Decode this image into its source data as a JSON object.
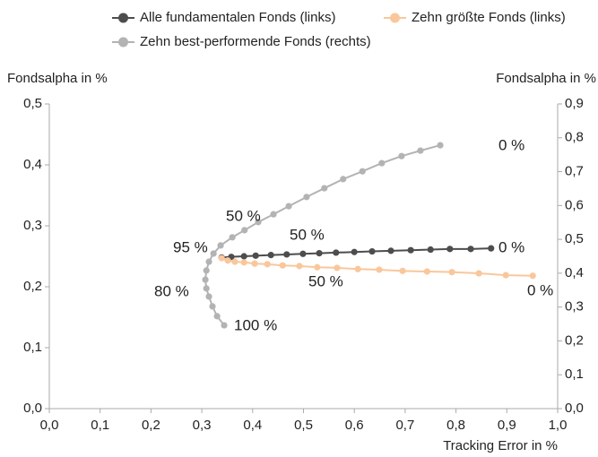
{
  "chart_data": {
    "type": "line",
    "xlabel": "Tracking Error in %",
    "ylabel": "Fondsalpha in %",
    "y2label": "Fondsalpha in %",
    "xlim": [
      0,
      1
    ],
    "ylim": [
      0,
      0.5
    ],
    "y2lim": [
      0,
      0.9
    ],
    "xticks": [
      {
        "value": 0,
        "label": "0,0"
      },
      {
        "value": 0.1,
        "label": "0,1"
      },
      {
        "value": 0.2,
        "label": "0,2"
      },
      {
        "value": 0.3,
        "label": "0,3"
      },
      {
        "value": 0.4,
        "label": "0,4"
      },
      {
        "value": 0.5,
        "label": "0,5"
      },
      {
        "value": 0.6,
        "label": "0,6"
      },
      {
        "value": 0.7,
        "label": "0,7"
      },
      {
        "value": 0.8,
        "label": "0,8"
      },
      {
        "value": 0.9,
        "label": "0,9"
      },
      {
        "value": 1,
        "label": "1,0"
      }
    ],
    "yticks": [
      {
        "value": 0,
        "label": "0,0"
      },
      {
        "value": 0.1,
        "label": "0,1"
      },
      {
        "value": 0.2,
        "label": "0,2"
      },
      {
        "value": 0.3,
        "label": "0,3"
      },
      {
        "value": 0.4,
        "label": "0,4"
      },
      {
        "value": 0.5,
        "label": "0,5"
      }
    ],
    "y2ticks": [
      {
        "value": 0,
        "label": "0,0"
      },
      {
        "value": 0.1,
        "label": "0,1"
      },
      {
        "value": 0.2,
        "label": "0,2"
      },
      {
        "value": 0.3,
        "label": "0,3"
      },
      {
        "value": 0.4,
        "label": "0,4"
      },
      {
        "value": 0.5,
        "label": "0,5"
      },
      {
        "value": 0.6,
        "label": "0,6"
      },
      {
        "value": 0.7,
        "label": "0,7"
      },
      {
        "value": 0.8,
        "label": "0,8"
      },
      {
        "value": 0.9,
        "label": "0,9"
      }
    ],
    "series": [
      {
        "name": "Alle fundamentalen Fonds (links)",
        "color": "#4d4d4d",
        "x": [
          0.339,
          0.358,
          0.383,
          0.406,
          0.436,
          0.467,
          0.499,
          0.531,
          0.564,
          0.6,
          0.635,
          0.672,
          0.711,
          0.75,
          0.788,
          0.829,
          0.869
        ],
        "values": [
          0.248,
          0.249,
          0.25,
          0.251,
          0.252,
          0.253,
          0.254,
          0.255,
          0.256,
          0.257,
          0.258,
          0.259,
          0.26,
          0.261,
          0.262,
          0.262,
          0.263
        ]
      },
      {
        "name": "Zehn größte Fonds (links)",
        "color": "#f9c79b",
        "x": [
          0.339,
          0.351,
          0.365,
          0.383,
          0.404,
          0.429,
          0.459,
          0.492,
          0.527,
          0.566,
          0.607,
          0.649,
          0.695,
          0.743,
          0.792,
          0.845,
          0.898,
          0.951
        ],
        "values": [
          0.247,
          0.243,
          0.241,
          0.24,
          0.238,
          0.237,
          0.235,
          0.234,
          0.232,
          0.231,
          0.229,
          0.228,
          0.226,
          0.225,
          0.224,
          0.222,
          0.219,
          0.218
        ]
      },
      {
        "name": "Zehn best-performende Fonds (rechts)",
        "color": "#b3b3b3",
        "axis": "y2",
        "x": [
          0.769,
          0.73,
          0.693,
          0.654,
          0.616,
          0.578,
          0.541,
          0.506,
          0.471,
          0.441,
          0.411,
          0.384,
          0.36,
          0.337,
          0.323,
          0.314,
          0.309,
          0.307,
          0.309,
          0.314,
          0.321,
          0.33,
          0.344
        ],
        "values": [
          0.778,
          0.762,
          0.746,
          0.725,
          0.701,
          0.678,
          0.651,
          0.625,
          0.598,
          0.574,
          0.551,
          0.527,
          0.506,
          0.482,
          0.458,
          0.434,
          0.408,
          0.381,
          0.355,
          0.331,
          0.302,
          0.273,
          0.246
        ]
      }
    ],
    "annotations": [
      "0 %",
      "50 %",
      "95 %",
      "80 %",
      "100 %",
      "50 %",
      "0 %",
      "50 %",
      "0 %"
    ]
  }
}
